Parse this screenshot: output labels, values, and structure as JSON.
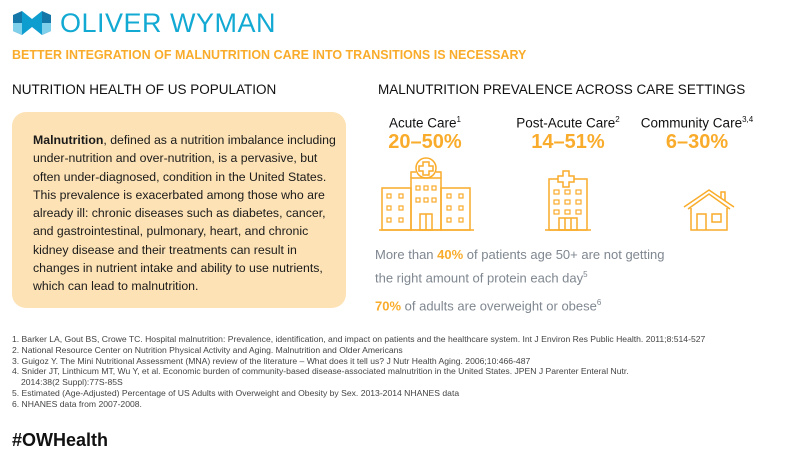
{
  "brand": {
    "name": "OLIVER WYMAN",
    "accent": "#f9ac2b",
    "logo_color": "#12a9d3"
  },
  "subtitle": "BETTER INTEGRATION OF MALNUTRITION CARE INTO TRANSITIONS IS NECESSARY",
  "left": {
    "heading": "NUTRITION HEALTH OF US POPULATION",
    "bold_term": "Malnutrition",
    "body": ", defined as a nutrition imbalance including under-nutrition and over-nutrition, is a pervasive, but often under-diagnosed, condition in the United States. This prevalence is exacerbated among those who are already ill: chronic diseases such as diabetes, cancer, and gastrointestinal, pulmonary, heart, and chronic kidney disease and their treatments can result in changes in nutrient intake and ability to use nutrients, which can lead to malnutrition."
  },
  "right": {
    "heading": "MALNUTRITION PREVALENCE ACROSS CARE SETTINGS",
    "settings": [
      {
        "label": "Acute Care",
        "ref": "1",
        "range": "20–50%",
        "icon": "hospital-icon"
      },
      {
        "label": "Post-Acute Care",
        "ref": "2",
        "range": "14–51%",
        "icon": "clinic-building-icon"
      },
      {
        "label": "Community Care",
        "ref": "3,4",
        "range": "6–30%",
        "icon": "house-icon"
      }
    ],
    "stat1": {
      "pre": "More than ",
      "value": "40%",
      "post": " of patients age 50+ are not getting the right amount of protein each day",
      "ref": "5"
    },
    "stat2": {
      "value": "70%",
      "post": " of adults are overweight or obese",
      "ref": "6"
    }
  },
  "footnotes": [
    "1. Barker LA, Gout BS, Crowe TC. Hospital malnutrition: Prevalence, identification, and impact on patients and the healthcare system. Int J Environ Res Public Health. 2011;8:514-527",
    "2. National Resource Center on Nutrition Physical Activity and Aging. Malnutrition and Older Americans",
    "3. Guigoz Y. The Mini Nutritional Assessment (MNA) review of the literature – What does it tell us? J Nutr Health Aging. 2006;10:466-487",
    "4. Snider JT, Linthicum MT, Wu Y, et al. Economic burden of community-based disease-associated malnutrition in the United States. JPEN J Parenter Enteral Nutr.",
    "2014:38(2 Suppl):77S-85S",
    "5. Estimated (Age-Adjusted) Percentage of US Adults with Overweight and Obesity by Sex. 2013-2014 NHANES data",
    "6. NHANES data from 2007-2008."
  ],
  "hashtag": "#OWHealth"
}
